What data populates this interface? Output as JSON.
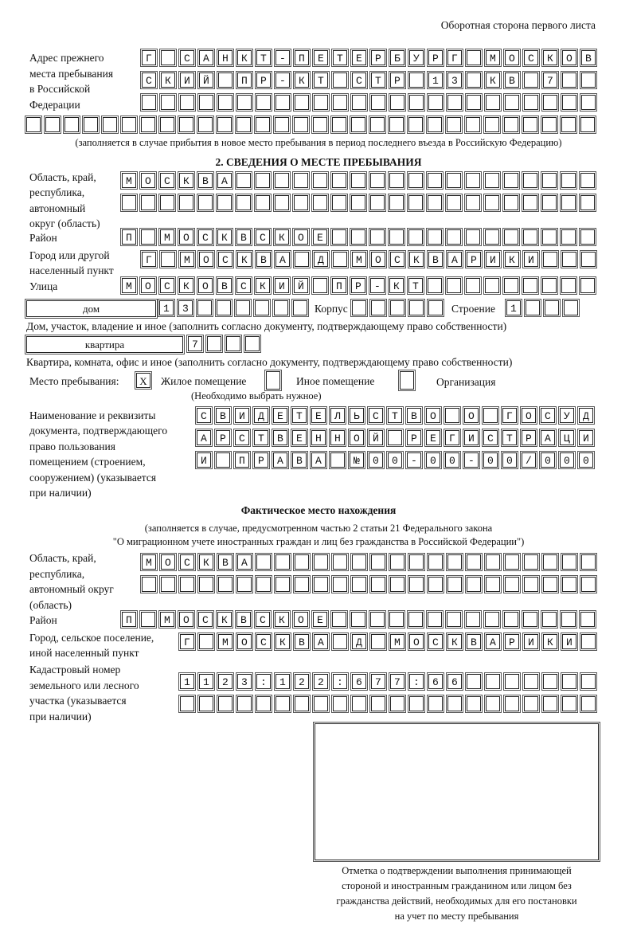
{
  "header": "Оборотная сторона первого листа",
  "prev_address": {
    "label": [
      "Адрес прежнего",
      "места пребывания",
      "в Российской",
      "Федерации"
    ],
    "rows": [
      "Г САНКТ-ПЕТЕРБУРГ МОСКОВ",
      "СКИЙ ПР-КТ СТР 13 КВ 7",
      "",
      ""
    ],
    "note": "(заполняется в случае прибытия в новое место пребывания в период последнего въезда в Российскую Федерацию)"
  },
  "section2": {
    "title": "2. СВЕДЕНИЯ О МЕСТЕ ПРЕБЫВАНИЯ",
    "region_label": [
      "Область, край,",
      "республика,",
      "автономный",
      "округ (область)"
    ],
    "region_rows": [
      "МОСКВА",
      ""
    ],
    "district_label": "Район",
    "district": "П МОСКВСКОЕ",
    "city_label": [
      "Город или другой",
      "населенный пункт"
    ],
    "city": "Г МОСКВА Д МОСКВАРИКИ",
    "street_label": "Улица",
    "street": "МОСКОВСКИЙ ПР-КТ",
    "house_type": "дом",
    "house": "13",
    "korpus_label": "Корпус",
    "korpus": "",
    "building_label": "Строение",
    "building": "1",
    "house_note": "Дом, участок, владение и иное (заполнить согласно документу, подтверждающему право собственности)",
    "apt_type": "квартира",
    "apt": "7",
    "apt_note": "Квартира, комната, офис и иное (заполнить согласно документу, подтверждающему право собственности)",
    "place_label": "Место пребывания:",
    "place_options": [
      {
        "label": "Жилое помещение",
        "mark": "X"
      },
      {
        "label": "Иное помещение",
        "mark": ""
      },
      {
        "label": "Организация",
        "mark": ""
      }
    ],
    "place_note": "(Необходимо выбрать нужное)",
    "doc_label": [
      "Наименование и реквизиты",
      "документа, подтверждающего",
      "право пользования",
      "помещением (строением,",
      "сооружением) (указывается",
      "при наличии)"
    ],
    "doc_rows": [
      "СВИДЕТЕЛЬСТВО О ГОСУД",
      "АРСТВЕННОЙ РЕГИСТРАЦИ",
      "И ПРАВА №00-00-00/000"
    ]
  },
  "actual": {
    "title": "Фактическое место нахождения",
    "subtitle": [
      "(заполняется в случае, предусмотренном частью 2 статьи 21 Федерального закона",
      "\"О миграционном учете иностранных граждан и лиц без гражданства в Российской Федерации\")"
    ],
    "region_label": [
      "Область, край,",
      "республика,",
      "автономный округ",
      "(область)"
    ],
    "region_rows": [
      "МОСКВА",
      ""
    ],
    "district_label": "Район",
    "district": "П МОСКВСКОЕ",
    "city_label": [
      "Город, сельское поселение,",
      "иной населенный пункт"
    ],
    "city": "Г МОСКВА Д МОСКВАРИКИ",
    "cadastral_label": [
      "Кадастровый номер",
      "земельного или лесного",
      "участка (указывается",
      "при наличии)"
    ],
    "cadastral_rows": [
      "1123:122:677:66",
      ""
    ]
  },
  "stamp_caption": [
    "Отметка о подтверждении выполнения принимающей",
    "стороной и иностранным гражданином или лицом без",
    "гражданства действий, необходимых для его постановки",
    "на учет по месту пребывания"
  ]
}
